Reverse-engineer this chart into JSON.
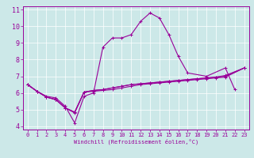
{
  "xlabel": "Windchill (Refroidissement éolien,°C)",
  "background_color": "#cce8e8",
  "line_color": "#990099",
  "grid_color": "#ffffff",
  "xlim": [
    -0.5,
    23.5
  ],
  "ylim": [
    3.8,
    11.2
  ],
  "yticks": [
    4,
    5,
    6,
    7,
    8,
    9,
    10,
    11
  ],
  "xticks": [
    0,
    1,
    2,
    3,
    4,
    5,
    6,
    7,
    8,
    9,
    10,
    11,
    12,
    13,
    14,
    15,
    16,
    17,
    18,
    19,
    20,
    21,
    22,
    23
  ],
  "main_x": [
    0,
    1,
    2,
    3,
    4,
    5,
    6,
    7,
    8,
    9,
    10,
    11,
    12,
    13,
    14,
    15,
    16,
    17,
    19,
    21,
    22
  ],
  "main_y": [
    6.5,
    6.1,
    5.8,
    5.7,
    5.2,
    4.2,
    5.8,
    6.0,
    8.75,
    9.3,
    9.3,
    9.5,
    10.3,
    10.8,
    10.5,
    9.5,
    8.2,
    7.2,
    7.0,
    7.5,
    6.2
  ],
  "lin1_x": [
    0,
    1,
    2,
    3,
    4,
    5,
    6,
    7,
    8,
    9,
    10,
    11,
    12,
    13,
    14,
    15,
    16,
    17,
    18,
    19,
    20,
    21,
    23
  ],
  "lin1_y": [
    6.5,
    6.1,
    5.75,
    5.6,
    5.1,
    4.8,
    6.05,
    6.1,
    6.15,
    6.2,
    6.3,
    6.4,
    6.5,
    6.55,
    6.6,
    6.65,
    6.7,
    6.75,
    6.8,
    6.85,
    6.9,
    6.95,
    7.5
  ],
  "lin2_x": [
    0,
    1,
    2,
    3,
    4,
    5,
    6,
    7,
    8,
    9,
    10,
    11,
    12,
    13,
    14,
    15,
    16,
    17,
    18,
    19,
    20,
    21,
    23
  ],
  "lin2_y": [
    6.5,
    6.1,
    5.75,
    5.6,
    5.1,
    4.85,
    6.05,
    6.15,
    6.2,
    6.3,
    6.4,
    6.5,
    6.55,
    6.6,
    6.65,
    6.7,
    6.75,
    6.8,
    6.85,
    6.9,
    6.95,
    7.0,
    7.5
  ],
  "lin3_x": [
    0,
    1,
    2,
    3,
    4,
    5,
    6,
    7,
    8,
    9,
    10,
    11,
    12,
    13,
    14,
    15,
    16,
    17,
    18,
    19,
    20,
    21,
    23
  ],
  "lin3_y": [
    6.5,
    6.1,
    5.75,
    5.6,
    5.1,
    4.85,
    6.05,
    6.15,
    6.2,
    6.3,
    6.4,
    6.5,
    6.55,
    6.6,
    6.65,
    6.7,
    6.75,
    6.8,
    6.85,
    6.9,
    6.95,
    7.05,
    7.5
  ],
  "tick_fontsize": 5,
  "xlabel_fontsize": 5,
  "linewidth": 0.8,
  "markersize": 2.5
}
